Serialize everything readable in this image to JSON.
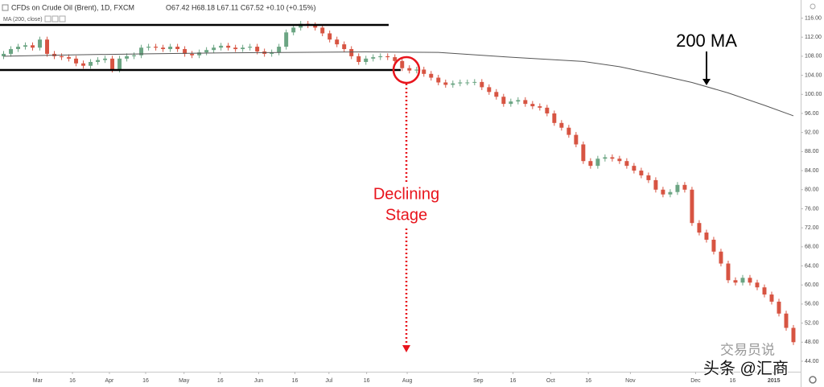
{
  "chart_data": {
    "type": "candlestick",
    "title": "CFDs on Crude Oil (Brent), 1D, FXCM",
    "ohlc_readout": "O67.42 H68.18 L67.11 C67.52 +0.10 (+0.15%)",
    "up_color": "#6ba583",
    "down_color": "#d75442",
    "open": [
      108,
      108.5,
      109.5,
      110,
      110.3,
      109.8,
      111.5,
      108.5,
      108,
      107.8,
      107.5,
      106.5,
      106,
      106.8,
      107.2,
      107.5,
      105.2,
      107.5,
      108,
      108.2,
      109.8,
      110,
      109.8,
      109.5,
      110,
      109.5,
      108.5,
      108.2,
      108.8,
      109.3,
      109.8,
      110.2,
      109.8,
      109.5,
      109.8,
      110,
      109,
      108.5,
      108.8,
      110,
      113,
      114,
      114.8,
      114.5,
      114,
      112.8,
      111.5,
      110.5,
      109.5,
      108,
      106.8,
      107.5,
      107.8,
      108,
      107.8,
      107,
      105.5,
      105,
      105.2,
      104.3,
      103.5,
      102.5,
      102,
      102.3,
      102.5,
      102.5,
      102.6,
      101.5,
      100.5,
      99.5,
      98,
      98.5,
      98.8,
      98,
      97.5,
      97.2,
      96,
      94,
      93,
      91.5,
      89.5,
      86,
      85,
      86.5,
      86.8,
      86.5,
      86,
      85,
      84,
      83,
      82,
      80,
      79,
      79.5,
      81,
      80,
      73,
      71,
      69.5,
      67,
      64.5,
      61,
      60.5,
      61.5,
      60.5,
      59.5,
      58,
      56.5,
      54,
      51
    ],
    "high": [
      109.1,
      110.1,
      110.6,
      110.9,
      110.9,
      112.1,
      112.1,
      109.1,
      108.6,
      108.4,
      108.1,
      107.1,
      107.4,
      107.8,
      108.1,
      108.1,
      108.1,
      108.6,
      108.8,
      110.4,
      110.6,
      110.6,
      110.4,
      110.6,
      110.6,
      110.1,
      109.1,
      109.4,
      109.9,
      110.4,
      110.8,
      110.8,
      110.4,
      110.4,
      110.6,
      110.6,
      109.6,
      109.4,
      110.6,
      113.6,
      114.6,
      115.4,
      115.4,
      115.1,
      114.6,
      113.4,
      112.1,
      111.1,
      110.1,
      108.6,
      108.1,
      108.4,
      108.6,
      108.6,
      108.4,
      107.6,
      106.1,
      105.8,
      105.8,
      104.9,
      104.1,
      103.1,
      102.9,
      103.1,
      103.1,
      103.2,
      103.2,
      102.1,
      101.1,
      100.1,
      99.1,
      99.4,
      99.4,
      98.6,
      98.1,
      97.8,
      96.6,
      94.6,
      93.6,
      92.1,
      90.1,
      86.6,
      87.1,
      87.4,
      87.4,
      87.1,
      86.6,
      85.6,
      84.6,
      83.6,
      82.6,
      80.6,
      80.1,
      81.6,
      81.6,
      80.6,
      73.6,
      71.6,
      70.1,
      67.6,
      65.1,
      61.6,
      62.1,
      62.1,
      61.1,
      60.1,
      58.6,
      57.1,
      54.6,
      51.6
    ],
    "low": [
      107.4,
      107.9,
      108.9,
      109.4,
      109.2,
      109.2,
      107.9,
      107.4,
      107.2,
      106.9,
      105.9,
      105.4,
      105.4,
      106.2,
      106.6,
      104.6,
      104.6,
      106.9,
      107.4,
      107.6,
      109.2,
      109.2,
      108.9,
      108.9,
      108.9,
      107.9,
      107.6,
      107.6,
      108.2,
      108.7,
      109.2,
      109.2,
      108.9,
      108.9,
      109.2,
      108.4,
      107.9,
      107.9,
      108.2,
      109.4,
      112.4,
      113.4,
      113.9,
      113.4,
      112.2,
      110.9,
      109.9,
      108.9,
      107.4,
      106.2,
      106.2,
      106.9,
      107.2,
      107.2,
      106.4,
      104.9,
      104.4,
      104.4,
      103.7,
      102.9,
      101.9,
      101.4,
      101.4,
      101.7,
      101.9,
      101.9,
      100.9,
      99.9,
      98.9,
      97.4,
      97.4,
      97.9,
      97.4,
      96.9,
      96.6,
      95.4,
      93.4,
      92.4,
      90.9,
      88.9,
      85.4,
      84.4,
      84.4,
      85.9,
      85.9,
      85.4,
      84.4,
      83.4,
      82.4,
      81.4,
      79.4,
      78.4,
      78.4,
      78.9,
      79.4,
      72.4,
      70.4,
      68.9,
      66.4,
      63.9,
      60.4,
      59.9,
      59.9,
      59.9,
      58.9,
      57.4,
      55.9,
      53.4,
      50.4,
      47.4
    ],
    "close": [
      108.5,
      109.5,
      110,
      110.3,
      109.8,
      111.5,
      108.5,
      108,
      107.8,
      107.5,
      106.5,
      106,
      106.8,
      107.2,
      107.5,
      105.2,
      107.5,
      108,
      108.2,
      109.8,
      110,
      109.8,
      109.5,
      110,
      109.5,
      108.5,
      108.2,
      108.8,
      109.3,
      109.8,
      110.2,
      109.8,
      109.5,
      109.8,
      110,
      109,
      108.5,
      108.8,
      110,
      113,
      114,
      114.8,
      114.5,
      114,
      112.8,
      111.5,
      110.5,
      109.5,
      108,
      106.8,
      107.5,
      107.8,
      108,
      107.8,
      107,
      105.5,
      105,
      105.2,
      104.3,
      103.5,
      102.5,
      102,
      102.3,
      102.5,
      102.5,
      102.6,
      101.5,
      100.5,
      99.5,
      98,
      98.5,
      98.8,
      98,
      97.5,
      97.2,
      96,
      94,
      93,
      91.5,
      89.5,
      86,
      85,
      86.5,
      86.8,
      86.5,
      86,
      85,
      84,
      83,
      82,
      80,
      79,
      79.5,
      81,
      80,
      73,
      71,
      69.5,
      67,
      64.5,
      61,
      60.5,
      61.5,
      60.5,
      59.5,
      58,
      56.5,
      54,
      51,
      48
    ],
    "series": [
      {
        "name": "MA (200, close)",
        "color": "#555555",
        "x": [
          0,
          10,
          20,
          30,
          40,
          50,
          60,
          70,
          80,
          85,
          90,
          95,
          100,
          105,
          109
        ],
        "values": [
          108.0,
          108.3,
          108.5,
          108.7,
          108.8,
          108.9,
          108.8,
          107.8,
          106.9,
          105.8,
          104.2,
          102.5,
          100.3,
          97.7,
          95.5
        ]
      }
    ],
    "xlim": [
      -0.5,
      110
    ],
    "xticks": [
      {
        "value": 4.7,
        "label": "Mar"
      },
      {
        "value": 9.5,
        "label": "16"
      },
      {
        "value": 14.6,
        "label": "Apr"
      },
      {
        "value": 19.6,
        "label": "16"
      },
      {
        "value": 24.9,
        "label": "May"
      },
      {
        "value": 29.9,
        "label": "16"
      },
      {
        "value": 35.2,
        "label": "Jun"
      },
      {
        "value": 40.2,
        "label": "16"
      },
      {
        "value": 44.9,
        "label": "Jul"
      },
      {
        "value": 50.1,
        "label": "16"
      },
      {
        "value": 55.7,
        "label": "Aug"
      },
      {
        "value": 65.5,
        "label": "Sep"
      },
      {
        "value": 70.3,
        "label": "16"
      },
      {
        "value": 75.5,
        "label": "Oct"
      },
      {
        "value": 80.7,
        "label": "16"
      },
      {
        "value": 86.5,
        "label": "Nov"
      },
      {
        "value": 95.5,
        "label": "Dec"
      },
      {
        "value": 100.6,
        "label": "16"
      },
      {
        "value": 106.3,
        "label": "2015"
      }
    ],
    "ylim": [
      41.8,
      119.8
    ],
    "yticks": [
      {
        "value": 44,
        "label": "44.00"
      },
      {
        "value": 48,
        "label": "48.00"
      },
      {
        "value": 52,
        "label": "52.00"
      },
      {
        "value": 56,
        "label": "56.00"
      },
      {
        "value": 60,
        "label": "60.00"
      },
      {
        "value": 64,
        "label": "64.00"
      },
      {
        "value": 68,
        "label": "68.00"
      },
      {
        "value": 72,
        "label": "72.00"
      },
      {
        "value": 76,
        "label": "76.00"
      },
      {
        "value": 80,
        "label": "80.00"
      },
      {
        "value": 84,
        "label": "84.00"
      },
      {
        "value": 88,
        "label": "88.00"
      },
      {
        "value": 92,
        "label": "92.00"
      },
      {
        "value": 96,
        "label": "96.00"
      },
      {
        "value": 100,
        "label": "100.00"
      },
      {
        "value": 104,
        "label": "104.00"
      },
      {
        "value": 108,
        "label": "108.00"
      },
      {
        "value": 112,
        "label": "112.00"
      },
      {
        "value": 116,
        "label": "116.00"
      }
    ],
    "annotations": {
      "ma_label": "200 MA",
      "stage_label": [
        "Declining",
        "Stage"
      ]
    },
    "watermark": [
      "交易员说",
      "头条 @汇商"
    ]
  }
}
